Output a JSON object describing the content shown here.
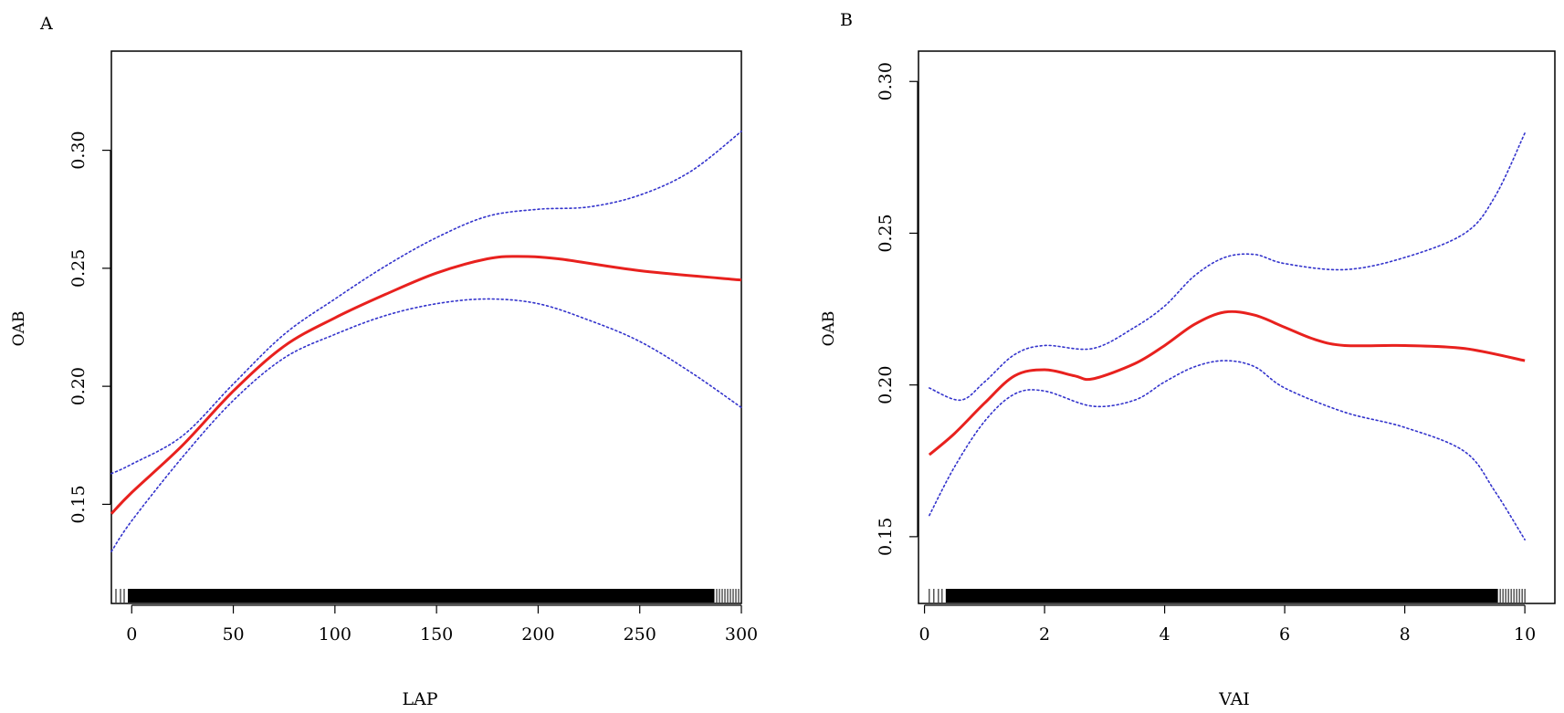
{
  "chart_data": [
    {
      "panel": "A",
      "type": "line",
      "xlabel": "LAP",
      "ylabel": "OAB",
      "xlim": [
        -10,
        300
      ],
      "ylim": [
        0.108,
        0.342
      ],
      "xticks": [
        0,
        50,
        100,
        150,
        200,
        250,
        300
      ],
      "yticks": [
        0.15,
        0.2,
        0.25,
        0.3
      ],
      "xtick_labels": [
        "0",
        "50",
        "100",
        "150",
        "200",
        "250",
        "300"
      ],
      "ytick_labels": [
        "0.15",
        "0.20",
        "0.25",
        "0.30"
      ],
      "grid": false,
      "rug_range": [
        -10,
        300
      ],
      "series": [
        {
          "role": "estimate",
          "color": "#e8211e",
          "style": "solid",
          "x": [
            -10,
            0,
            25,
            50,
            75,
            100,
            125,
            150,
            175,
            190,
            210,
            250,
            300
          ],
          "y": [
            0.146,
            0.155,
            0.175,
            0.198,
            0.217,
            0.229,
            0.239,
            0.248,
            0.254,
            0.255,
            0.254,
            0.249,
            0.245
          ]
        },
        {
          "role": "upper_ci",
          "color": "#3333cc",
          "style": "dotted",
          "x": [
            -10,
            0,
            25,
            50,
            75,
            100,
            125,
            150,
            175,
            200,
            225,
            250,
            275,
            300
          ],
          "y": [
            0.163,
            0.167,
            0.179,
            0.201,
            0.222,
            0.237,
            0.251,
            0.263,
            0.272,
            0.275,
            0.276,
            0.281,
            0.291,
            0.308
          ]
        },
        {
          "role": "lower_ci",
          "color": "#3333cc",
          "style": "dotted",
          "x": [
            -10,
            0,
            25,
            50,
            75,
            100,
            125,
            150,
            175,
            200,
            225,
            250,
            275,
            300
          ],
          "y": [
            0.13,
            0.143,
            0.17,
            0.194,
            0.212,
            0.222,
            0.23,
            0.235,
            0.237,
            0.235,
            0.228,
            0.219,
            0.206,
            0.191
          ]
        }
      ]
    },
    {
      "panel": "B",
      "type": "line",
      "xlabel": "VAI",
      "ylabel": "OAB",
      "xlim": [
        -0.1,
        10.5
      ],
      "ylim": [
        0.128,
        0.31
      ],
      "xticks": [
        0,
        2,
        4,
        6,
        8,
        10
      ],
      "yticks": [
        0.15,
        0.2,
        0.25,
        0.3
      ],
      "xtick_labels": [
        "0",
        "2",
        "4",
        "6",
        "8",
        "10"
      ],
      "ytick_labels": [
        "0.15",
        "0.20",
        "0.25",
        "0.30"
      ],
      "grid": false,
      "rug_range": [
        0.08,
        10.0
      ],
      "series": [
        {
          "role": "estimate",
          "color": "#e8211e",
          "style": "solid",
          "x": [
            0.08,
            0.5,
            1.0,
            1.5,
            2.0,
            2.5,
            2.8,
            3.5,
            4.0,
            4.5,
            5.0,
            5.5,
            6.0,
            6.5,
            7.0,
            8.0,
            9.0,
            10.0
          ],
          "y": [
            0.177,
            0.184,
            0.194,
            0.203,
            0.205,
            0.203,
            0.202,
            0.207,
            0.213,
            0.22,
            0.224,
            0.223,
            0.219,
            0.215,
            0.213,
            0.213,
            0.212,
            0.208
          ]
        },
        {
          "role": "upper_ci",
          "color": "#3333cc",
          "style": "dotted",
          "x": [
            0.08,
            0.6,
            1.0,
            1.5,
            2.0,
            2.8,
            3.5,
            4.0,
            4.5,
            5.0,
            5.5,
            6.0,
            7.0,
            8.0,
            9.0,
            9.5,
            10.0
          ],
          "y": [
            0.199,
            0.195,
            0.201,
            0.21,
            0.213,
            0.212,
            0.219,
            0.226,
            0.236,
            0.242,
            0.243,
            0.24,
            0.238,
            0.242,
            0.25,
            0.262,
            0.283
          ]
        },
        {
          "role": "lower_ci",
          "color": "#3333cc",
          "style": "dotted",
          "x": [
            0.08,
            0.5,
            1.0,
            1.5,
            2.0,
            2.8,
            3.5,
            4.0,
            4.5,
            5.0,
            5.5,
            6.0,
            7.0,
            8.0,
            9.0,
            9.5,
            10.0
          ],
          "y": [
            0.157,
            0.173,
            0.188,
            0.197,
            0.198,
            0.193,
            0.195,
            0.201,
            0.206,
            0.208,
            0.206,
            0.199,
            0.191,
            0.186,
            0.178,
            0.165,
            0.149
          ]
        }
      ]
    }
  ]
}
